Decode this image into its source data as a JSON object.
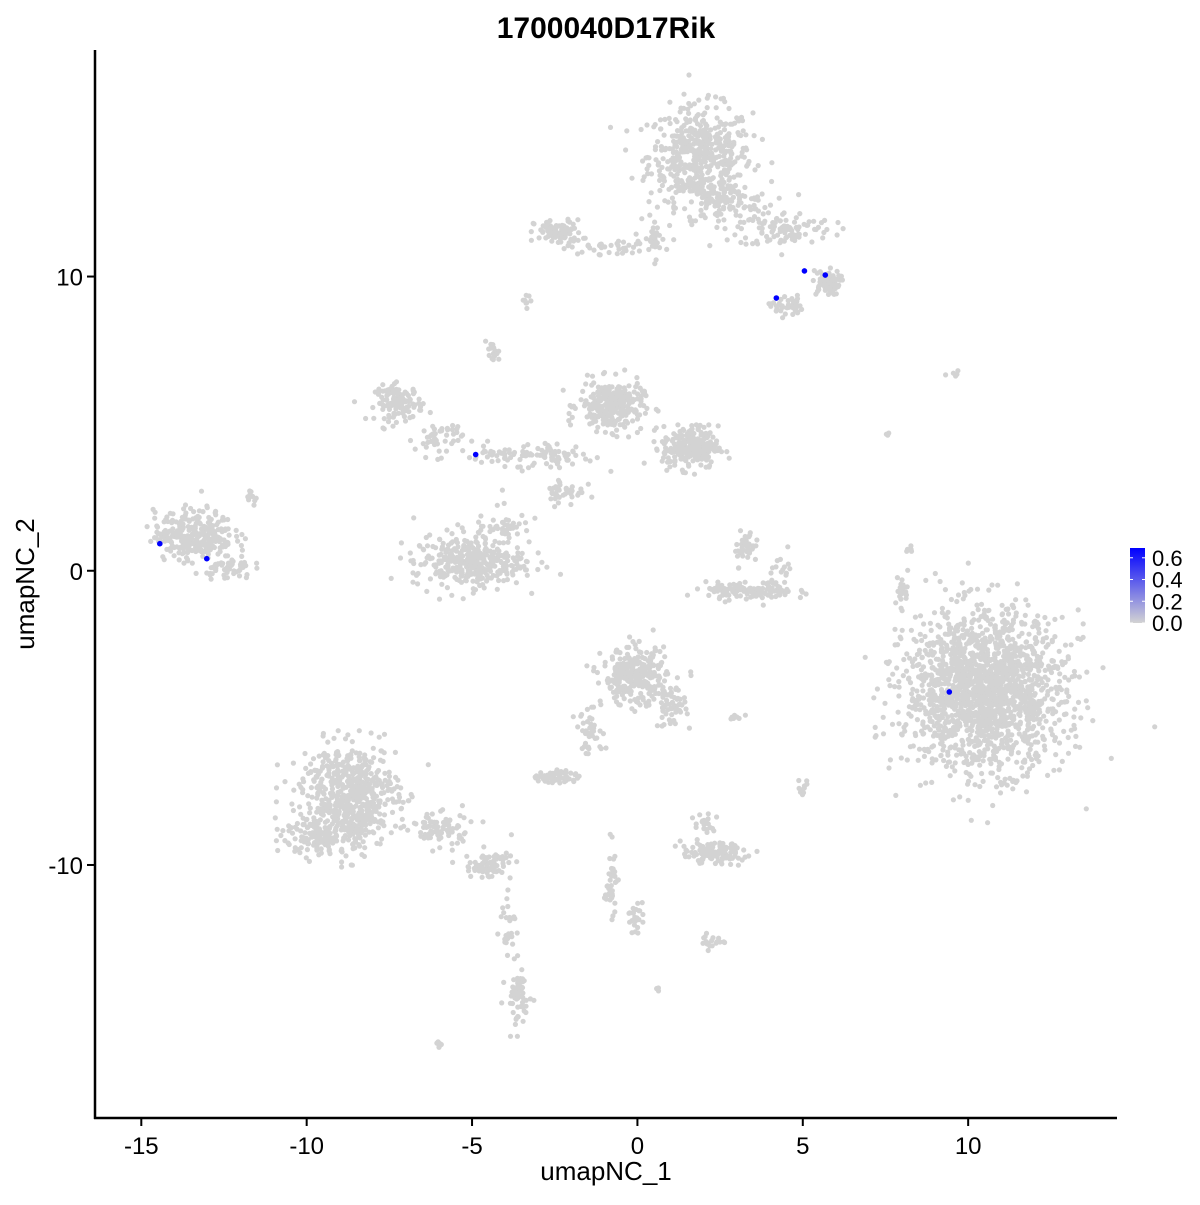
{
  "chart_data": {
    "type": "scatter",
    "title": "1700040D17Rik",
    "xlabel": "umapNC_1",
    "ylabel": "umapNC_2",
    "xlim": [
      -16.4,
      14.5
    ],
    "ylim": [
      -18.6,
      17.7
    ],
    "x_ticks": [
      -15,
      -10,
      -5,
      0,
      5,
      10
    ],
    "y_ticks": [
      -10,
      0,
      10
    ],
    "x_tick_labels": [
      "-15",
      "-10",
      "-5",
      "0",
      "5",
      "10"
    ],
    "y_tick_labels": [
      "-10",
      "0",
      "10"
    ],
    "grid": false,
    "background_color": "#d3d3d3",
    "low_color": "#d3d3d3",
    "high_color": "#0000ff",
    "legend": {
      "placement": "right",
      "range": [
        0,
        0.69
      ],
      "ticks": [
        0,
        0.2,
        0.4,
        0.6
      ],
      "tick_labels": [
        "0.0",
        "0.2",
        "0.4",
        "0.6"
      ]
    },
    "expressing_cells": [
      {
        "x": -14.44,
        "y": 0.92,
        "value": 0.69
      },
      {
        "x": -13.02,
        "y": 0.41,
        "value": 0.69
      },
      {
        "x": -4.89,
        "y": 3.95,
        "value": 0.69
      },
      {
        "x": 5.05,
        "y": 10.19,
        "value": 0.69
      },
      {
        "x": 5.68,
        "y": 10.05,
        "value": 0.69
      },
      {
        "x": 4.2,
        "y": 9.27,
        "value": 0.69
      },
      {
        "x": 9.43,
        "y": -4.12,
        "value": 0.69
      }
    ]
  }
}
